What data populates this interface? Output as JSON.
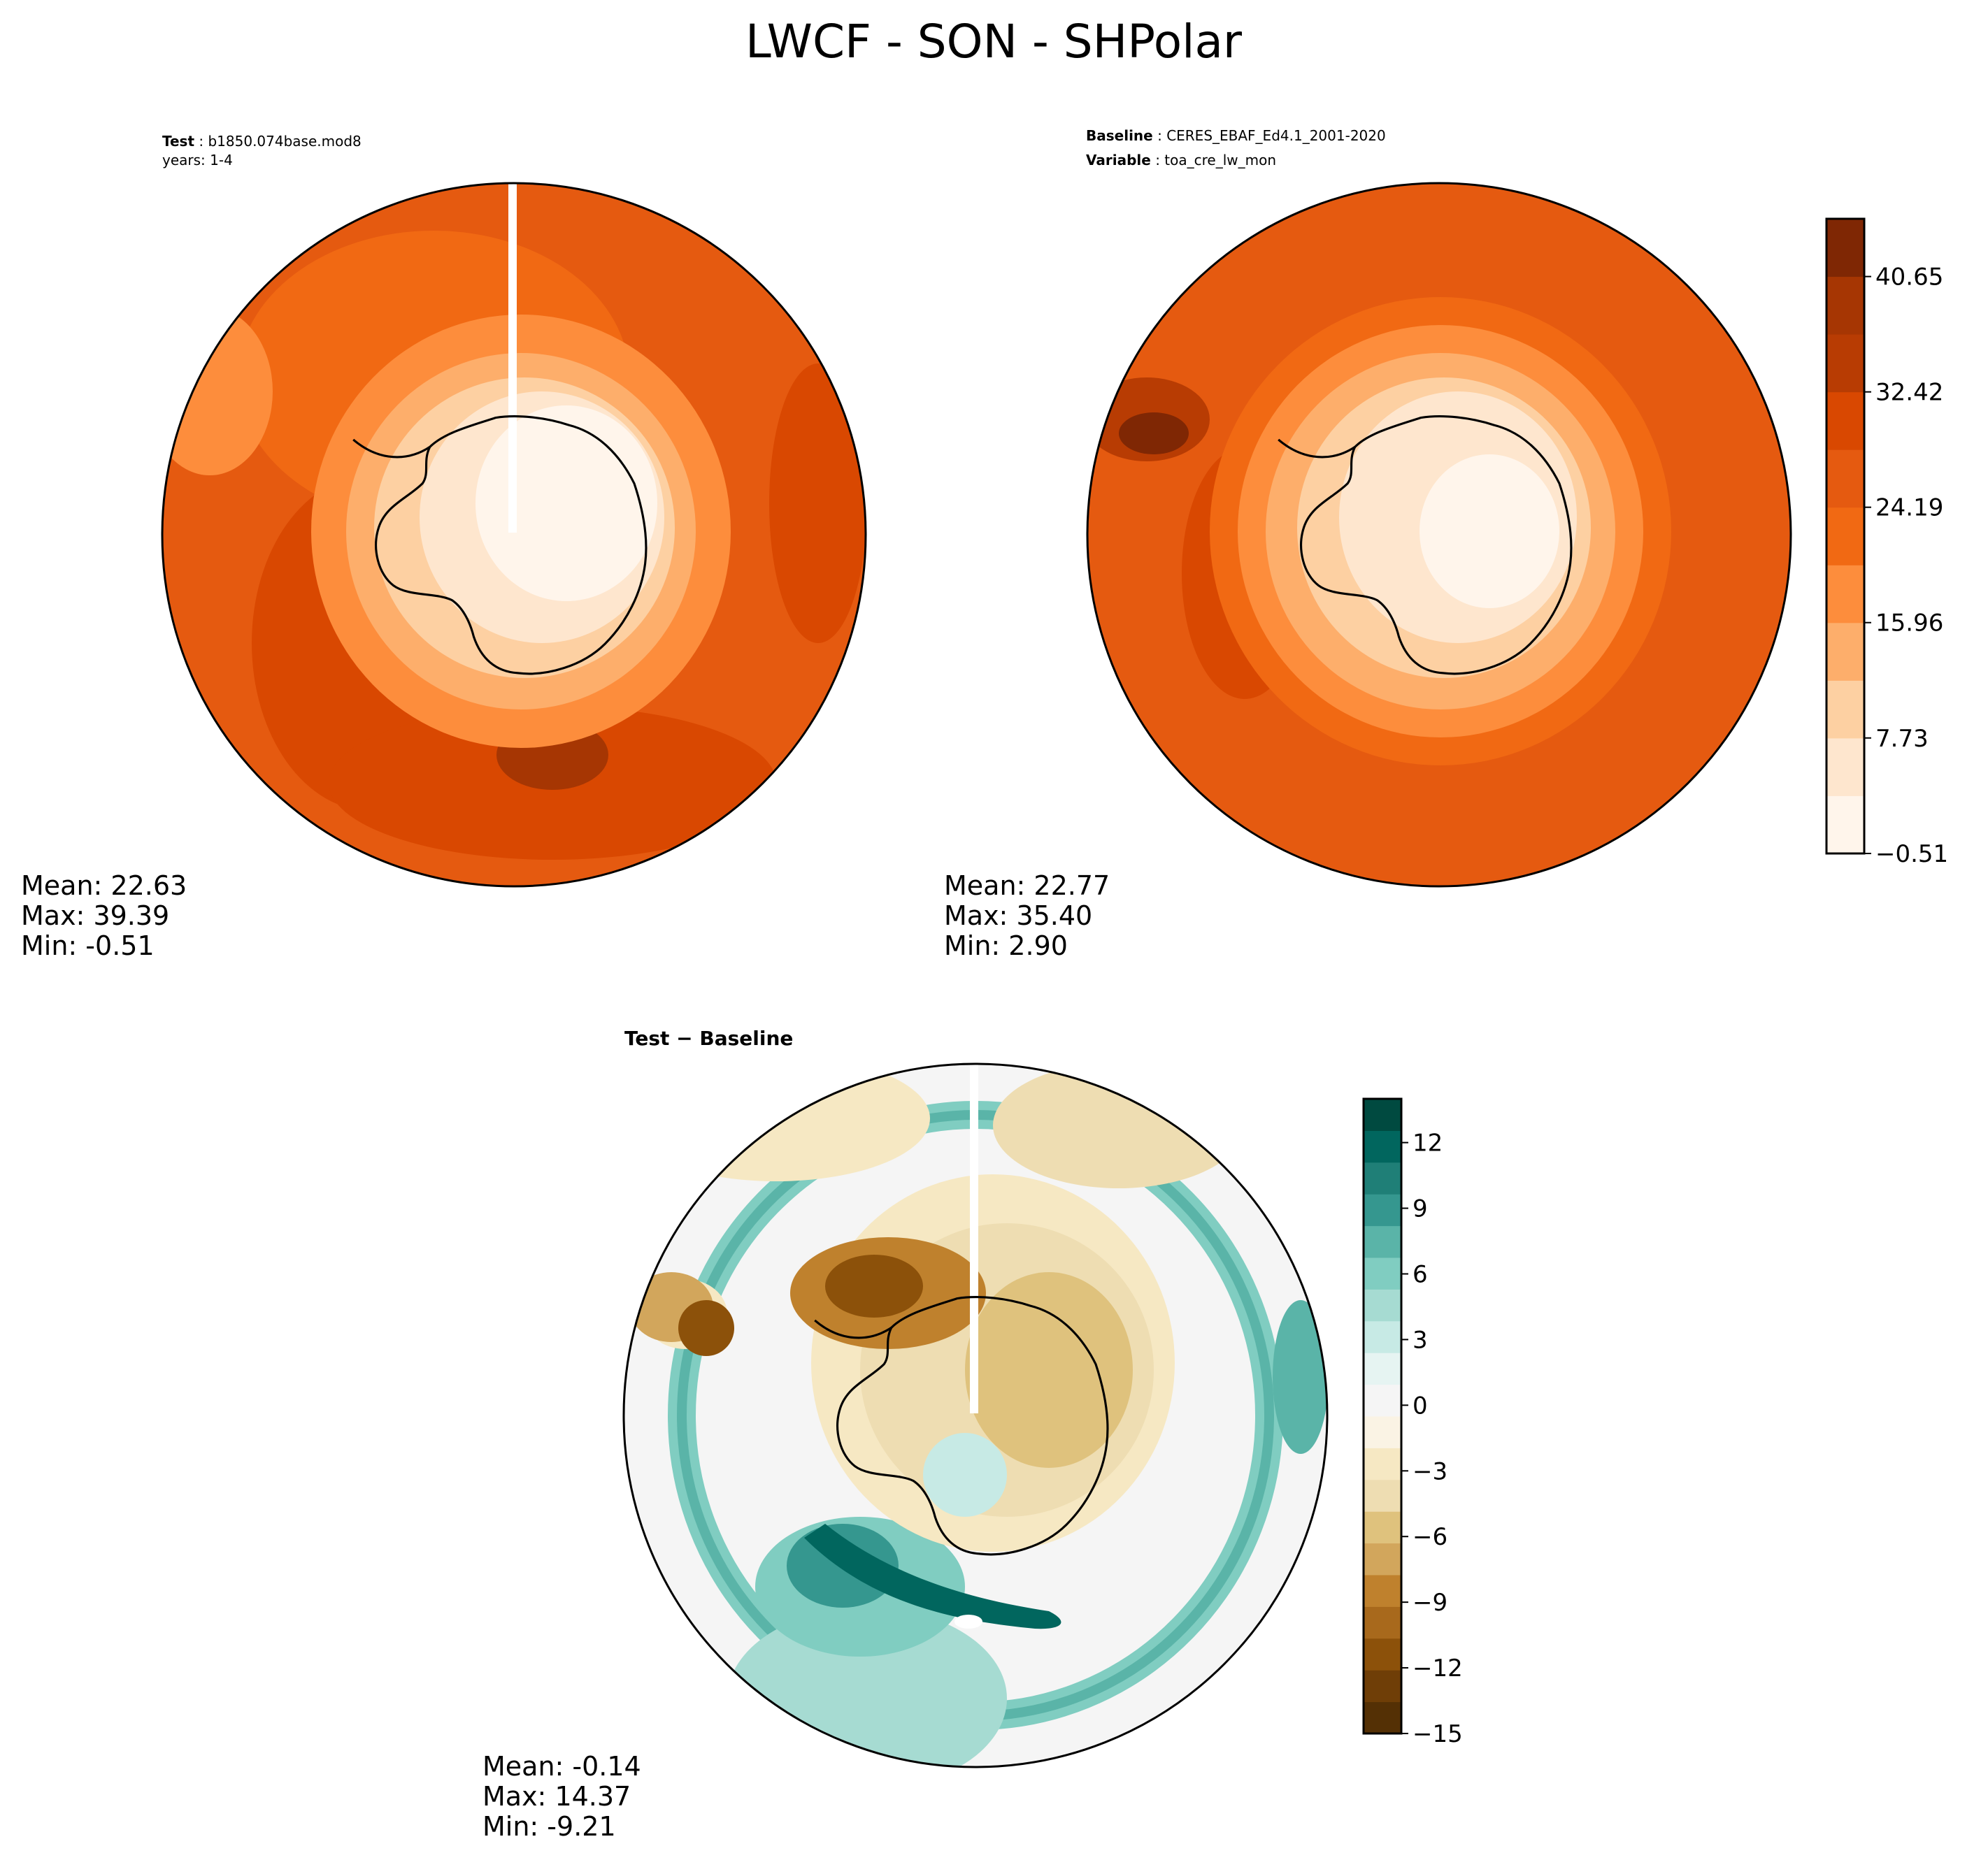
{
  "title": "LWCF - SON - SHPolar",
  "panels": [
    {
      "id": "test",
      "header_label": "Test",
      "header_value": "b1850.074base.mod8",
      "header_line2": "years: 1-4",
      "stats": {
        "mean": "Mean: 22.63",
        "max": "Max: 39.39",
        "min": "Min: -0.51"
      },
      "palette": "orange"
    },
    {
      "id": "baseline",
      "header_label": "Baseline",
      "header_value": "CERES_EBAF_Ed4.1_2001-2020",
      "header_label2": "Variable",
      "header_value2": "toa_cre_lw_mon",
      "stats": {
        "mean": "Mean: 22.77",
        "max": "Max: 35.40",
        "min": "Min:  2.90"
      },
      "palette": "orange"
    },
    {
      "id": "diff",
      "header_label": "Test − Baseline",
      "stats": {
        "mean": "Mean: -0.14",
        "max": "Max: 14.37",
        "min": "Min: -9.21"
      },
      "palette": "diverging"
    }
  ],
  "colorbar_top": {
    "range": [
      -0.51,
      44.77
    ],
    "ticks": [
      {
        "value": 40.65,
        "label": "40.65"
      },
      {
        "value": 32.42,
        "label": "32.42"
      },
      {
        "value": 24.19,
        "label": "24.19"
      },
      {
        "value": 15.96,
        "label": "15.96"
      },
      {
        "value": 7.73,
        "label": "7.73"
      },
      {
        "value": -0.51,
        "label": "−0.51"
      }
    ],
    "colors": [
      "#fff5eb",
      "#fee6ce",
      "#fdd0a2",
      "#fdae6b",
      "#fd8d3c",
      "#f16913",
      "#e55a10",
      "#d94801",
      "#b83c03",
      "#a63603",
      "#7f2704"
    ]
  },
  "colorbar_bottom": {
    "range": [
      -15,
      14
    ],
    "ticks": [
      {
        "value": 12,
        "label": "12"
      },
      {
        "value": 9,
        "label": "9"
      },
      {
        "value": 6,
        "label": "6"
      },
      {
        "value": 3,
        "label": "3"
      },
      {
        "value": 0,
        "label": "0"
      },
      {
        "value": -3,
        "label": "−3"
      },
      {
        "value": -6,
        "label": "−6"
      },
      {
        "value": -9,
        "label": "−9"
      },
      {
        "value": -12,
        "label": "−12"
      },
      {
        "value": -15,
        "label": "−15"
      }
    ],
    "colors": [
      "#543005",
      "#6f3e07",
      "#8c510a",
      "#a8691c",
      "#bf812d",
      "#d2a65c",
      "#dfc27d",
      "#eeddb2",
      "#f6e8c3",
      "#faf3e4",
      "#f5f5f5",
      "#e6f4f2",
      "#c7eae5",
      "#a6dbd2",
      "#80cdc1",
      "#5ab4a8",
      "#35978f",
      "#1f7f77",
      "#01665e",
      "#004a40"
    ]
  }
}
